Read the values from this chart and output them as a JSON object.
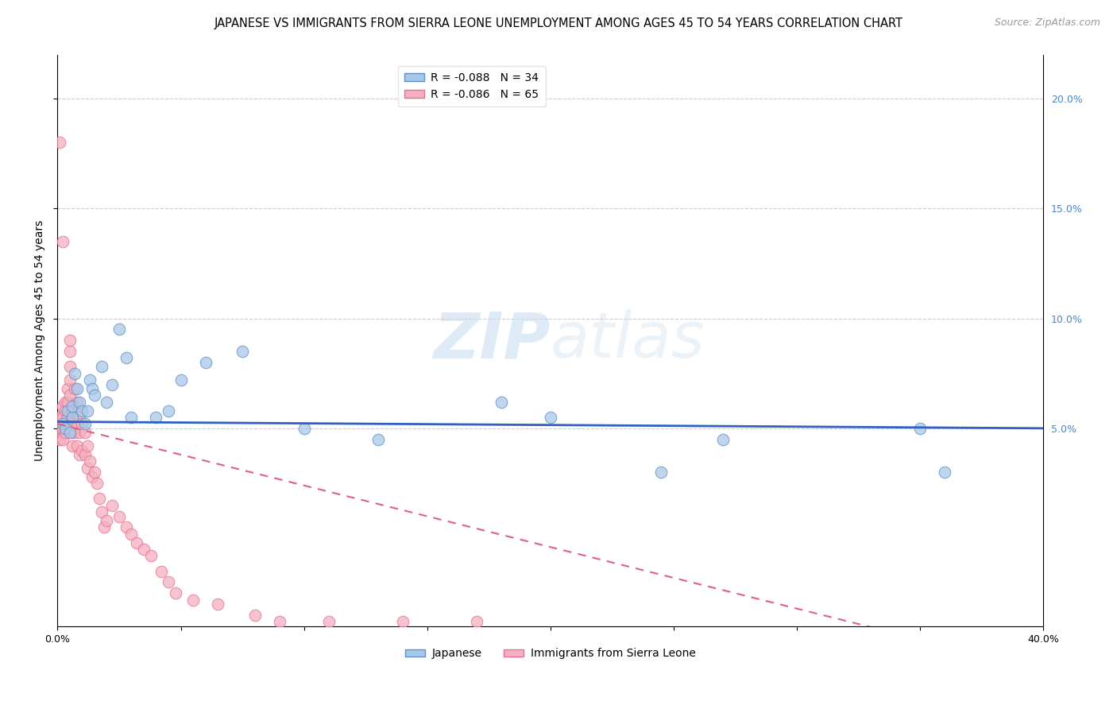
{
  "title": "JAPANESE VS IMMIGRANTS FROM SIERRA LEONE UNEMPLOYMENT AMONG AGES 45 TO 54 YEARS CORRELATION CHART",
  "source": "Source: ZipAtlas.com",
  "ylabel": "Unemployment Among Ages 45 to 54 years",
  "xlim": [
    0.0,
    0.4
  ],
  "ylim": [
    -0.04,
    0.22
  ],
  "yticks_right": [
    0.05,
    0.1,
    0.15,
    0.2
  ],
  "ytick_labels_right": [
    "5.0%",
    "10.0%",
    "15.0%",
    "20.0%"
  ],
  "xticks": [
    0.0,
    0.05,
    0.1,
    0.15,
    0.2,
    0.25,
    0.3,
    0.35,
    0.4
  ],
  "xtick_labels": [
    "0.0%",
    "",
    "",
    "",
    "",
    "",
    "",
    "",
    "40.0%"
  ],
  "grid_color": "#cccccc",
  "watermark_zip": "ZIP",
  "watermark_atlas": "atlas",
  "legend_entries": [
    {
      "label": "R = -0.088   N = 34",
      "color": "#aac4e0"
    },
    {
      "label": "R = -0.086   N = 65",
      "color": "#f4a0b0"
    }
  ],
  "legend_labels_bottom": [
    "Japanese",
    "Immigrants from Sierra Leone"
  ],
  "japanese_color": "#a8c8e8",
  "sierra_leone_color": "#f4b0c0",
  "japanese_edge_color": "#6090c8",
  "sierra_leone_edge_color": "#e87090",
  "regression_japanese_color": "#3060c0",
  "regression_sierra_leone_color": "#e06080",
  "japanese_x": [
    0.002,
    0.003,
    0.004,
    0.005,
    0.006,
    0.006,
    0.007,
    0.008,
    0.009,
    0.01,
    0.011,
    0.012,
    0.013,
    0.014,
    0.015,
    0.018,
    0.02,
    0.022,
    0.025,
    0.028,
    0.03,
    0.04,
    0.045,
    0.05,
    0.06,
    0.075,
    0.1,
    0.13,
    0.18,
    0.2,
    0.245,
    0.27,
    0.35,
    0.36
  ],
  "japanese_y": [
    0.052,
    0.05,
    0.058,
    0.048,
    0.055,
    0.06,
    0.075,
    0.068,
    0.062,
    0.058,
    0.052,
    0.058,
    0.072,
    0.068,
    0.065,
    0.078,
    0.062,
    0.07,
    0.095,
    0.082,
    0.055,
    0.055,
    0.058,
    0.072,
    0.08,
    0.085,
    0.05,
    0.045,
    0.062,
    0.055,
    0.03,
    0.045,
    0.05,
    0.03
  ],
  "sierra_leone_x": [
    0.001,
    0.001,
    0.001,
    0.002,
    0.002,
    0.002,
    0.002,
    0.003,
    0.003,
    0.003,
    0.003,
    0.004,
    0.004,
    0.004,
    0.005,
    0.005,
    0.005,
    0.005,
    0.005,
    0.006,
    0.006,
    0.006,
    0.006,
    0.007,
    0.007,
    0.007,
    0.008,
    0.008,
    0.008,
    0.009,
    0.009,
    0.009,
    0.01,
    0.01,
    0.011,
    0.011,
    0.012,
    0.012,
    0.013,
    0.014,
    0.015,
    0.016,
    0.017,
    0.018,
    0.019,
    0.02,
    0.022,
    0.025,
    0.028,
    0.03,
    0.032,
    0.035,
    0.038,
    0.042,
    0.045,
    0.048,
    0.055,
    0.065,
    0.08,
    0.09,
    0.11,
    0.14,
    0.17,
    0.001,
    0.002
  ],
  "sierra_leone_y": [
    0.055,
    0.05,
    0.045,
    0.055,
    0.06,
    0.05,
    0.045,
    0.062,
    0.058,
    0.052,
    0.048,
    0.068,
    0.062,
    0.055,
    0.078,
    0.085,
    0.09,
    0.072,
    0.065,
    0.058,
    0.052,
    0.048,
    0.042,
    0.068,
    0.058,
    0.048,
    0.062,
    0.052,
    0.042,
    0.055,
    0.048,
    0.038,
    0.052,
    0.04,
    0.048,
    0.038,
    0.042,
    0.032,
    0.035,
    0.028,
    0.03,
    0.025,
    0.018,
    0.012,
    0.005,
    0.008,
    0.015,
    0.01,
    0.005,
    0.002,
    -0.002,
    -0.005,
    -0.008,
    -0.015,
    -0.02,
    -0.025,
    -0.028,
    -0.03,
    -0.035,
    -0.038,
    -0.038,
    -0.038,
    -0.038,
    0.18,
    0.135
  ],
  "title_fontsize": 10.5,
  "axis_label_fontsize": 10,
  "tick_fontsize": 9,
  "source_fontsize": 9
}
